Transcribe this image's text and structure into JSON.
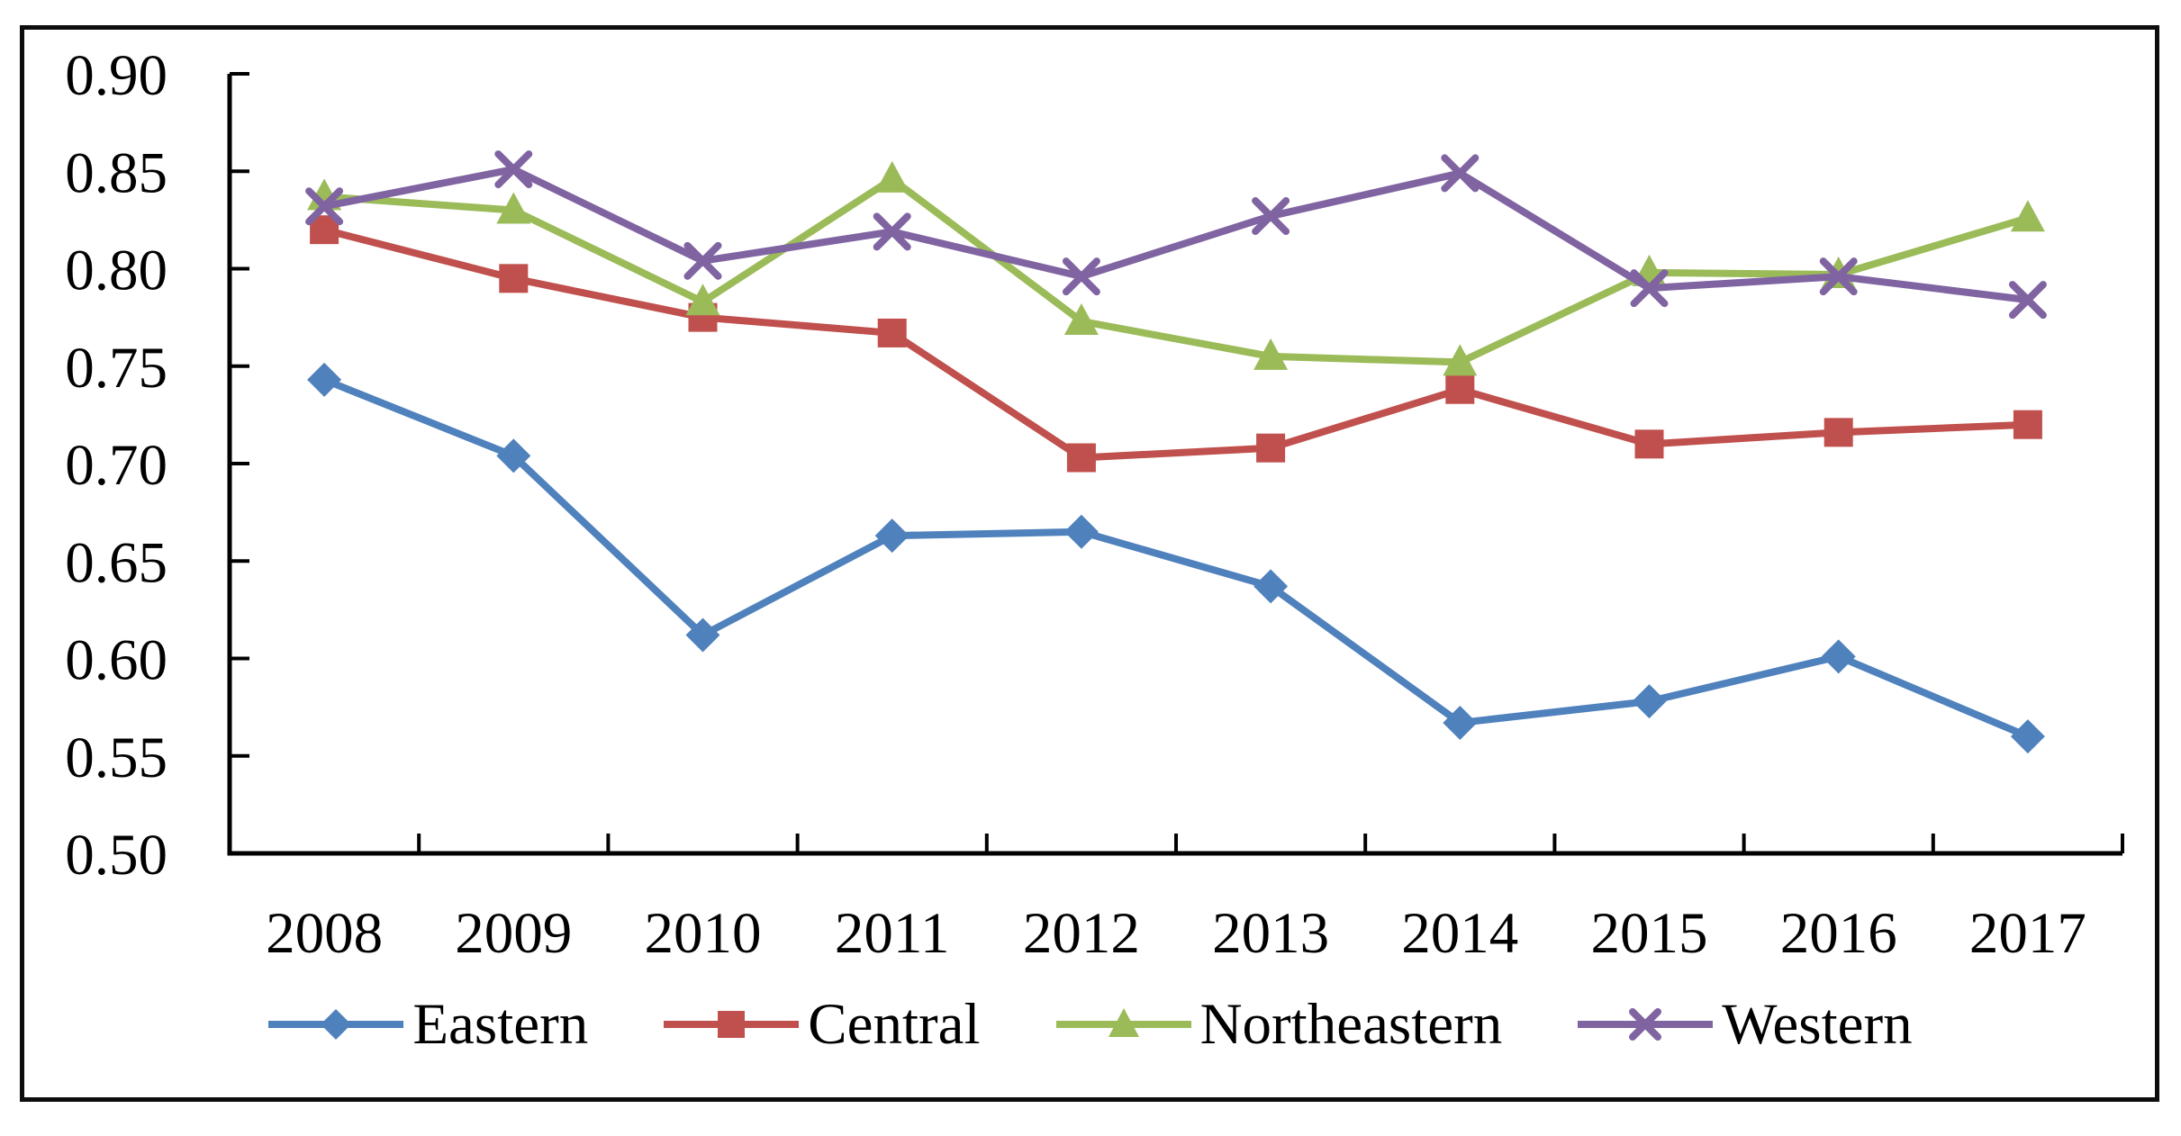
{
  "chart_data": {
    "type": "line",
    "title": "",
    "xlabel": "",
    "ylabel": "",
    "categories": [
      "2008",
      "2009",
      "2010",
      "2011",
      "2012",
      "2013",
      "2014",
      "2015",
      "2016",
      "2017"
    ],
    "series": [
      {
        "name": "Eastern",
        "color": "#4F81BD",
        "marker": "diamond",
        "values": [
          0.743,
          0.704,
          0.612,
          0.663,
          0.665,
          0.637,
          0.567,
          0.578,
          0.601,
          0.56
        ]
      },
      {
        "name": "Central",
        "color": "#C0504D",
        "marker": "square",
        "values": [
          0.82,
          0.795,
          0.775,
          0.767,
          0.703,
          0.708,
          0.738,
          0.71,
          0.716,
          0.72
        ]
      },
      {
        "name": "Northeastern",
        "color": "#9BBB59",
        "marker": "triangle",
        "values": [
          0.837,
          0.83,
          0.783,
          0.846,
          0.773,
          0.755,
          0.752,
          0.798,
          0.797,
          0.826
        ]
      },
      {
        "name": "Western",
        "color": "#8064A2",
        "marker": "x",
        "values": [
          0.832,
          0.851,
          0.804,
          0.819,
          0.796,
          0.827,
          0.849,
          0.79,
          0.796,
          0.784
        ]
      }
    ],
    "ylim": [
      0.5,
      0.9
    ],
    "ytick_step": 0.05,
    "ytick_labels": [
      "0.90",
      "0.85",
      "0.80",
      "0.75",
      "0.70",
      "0.65",
      "0.60",
      "0.55",
      "0.50"
    ],
    "grid": false,
    "legend_position": "bottom",
    "axis_color": "#000000",
    "background": "#FFFFFF",
    "tick_direction": "inside"
  }
}
